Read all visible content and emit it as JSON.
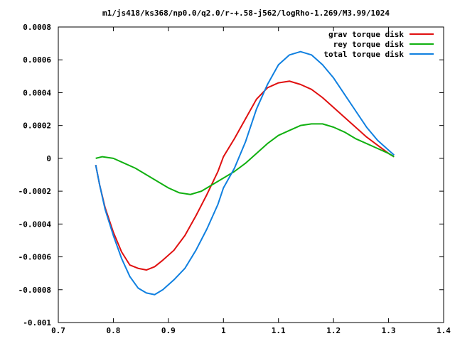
{
  "chart_data": {
    "type": "line",
    "title": "m1/js418/ks368/np0.0/q2.0/r-+.58-j562/logRho-1.269/M3.99/1024",
    "xlabel": "",
    "ylabel": "",
    "xlim": [
      0.7,
      1.4
    ],
    "ylim": [
      -0.001,
      0.0008
    ],
    "x_ticks": [
      "0.7",
      "0.8",
      "0.9",
      "1",
      "1.1",
      "1.2",
      "1.3",
      "1.4"
    ],
    "y_ticks": [
      "-0.001",
      "-0.0008",
      "-0.0006",
      "-0.0004",
      "-0.0002",
      "0",
      "0.0002",
      "0.0004",
      "0.0006",
      "0.0008"
    ],
    "grid": false,
    "legend_position": "top-right",
    "series": [
      {
        "name": "grav torque disk",
        "color": "#e01010",
        "points": [
          [
            0.768,
            -4e-05
          ],
          [
            0.775,
            -0.00016
          ],
          [
            0.785,
            -0.0003
          ],
          [
            0.8,
            -0.00045
          ],
          [
            0.815,
            -0.00057
          ],
          [
            0.83,
            -0.00065
          ],
          [
            0.845,
            -0.00067
          ],
          [
            0.86,
            -0.00068
          ],
          [
            0.875,
            -0.00066
          ],
          [
            0.89,
            -0.00062
          ],
          [
            0.91,
            -0.00056
          ],
          [
            0.93,
            -0.00047
          ],
          [
            0.95,
            -0.00035
          ],
          [
            0.97,
            -0.00022
          ],
          [
            0.99,
            -8e-05
          ],
          [
            1.0,
            1e-05
          ],
          [
            1.02,
            0.00012
          ],
          [
            1.04,
            0.00024
          ],
          [
            1.06,
            0.00036
          ],
          [
            1.08,
            0.00043
          ],
          [
            1.1,
            0.00046
          ],
          [
            1.12,
            0.00047
          ],
          [
            1.14,
            0.00045
          ],
          [
            1.16,
            0.00042
          ],
          [
            1.18,
            0.00037
          ],
          [
            1.2,
            0.00031
          ],
          [
            1.22,
            0.00025
          ],
          [
            1.24,
            0.00019
          ],
          [
            1.26,
            0.00013
          ],
          [
            1.28,
            8e-05
          ],
          [
            1.3,
            3e-05
          ],
          [
            1.31,
            1e-05
          ]
        ]
      },
      {
        "name": "rey torque disk",
        "color": "#10b010",
        "points": [
          [
            0.768,
            0.0
          ],
          [
            0.78,
            1e-05
          ],
          [
            0.8,
            0.0
          ],
          [
            0.82,
            -3e-05
          ],
          [
            0.84,
            -6e-05
          ],
          [
            0.86,
            -0.0001
          ],
          [
            0.88,
            -0.00014
          ],
          [
            0.9,
            -0.00018
          ],
          [
            0.92,
            -0.00021
          ],
          [
            0.94,
            -0.00022
          ],
          [
            0.96,
            -0.0002
          ],
          [
            0.98,
            -0.00016
          ],
          [
            1.0,
            -0.00012
          ],
          [
            1.02,
            -8e-05
          ],
          [
            1.04,
            -3e-05
          ],
          [
            1.06,
            3e-05
          ],
          [
            1.08,
            9e-05
          ],
          [
            1.1,
            0.00014
          ],
          [
            1.12,
            0.00017
          ],
          [
            1.14,
            0.0002
          ],
          [
            1.16,
            0.00021
          ],
          [
            1.18,
            0.00021
          ],
          [
            1.2,
            0.00019
          ],
          [
            1.22,
            0.00016
          ],
          [
            1.24,
            0.00012
          ],
          [
            1.26,
            9e-05
          ],
          [
            1.28,
            6e-05
          ],
          [
            1.3,
            3e-05
          ],
          [
            1.31,
            1e-05
          ]
        ]
      },
      {
        "name": "total torque disk",
        "color": "#1080e0",
        "points": [
          [
            0.768,
            -4e-05
          ],
          [
            0.775,
            -0.00016
          ],
          [
            0.785,
            -0.00031
          ],
          [
            0.8,
            -0.00047
          ],
          [
            0.815,
            -0.00061
          ],
          [
            0.83,
            -0.00072
          ],
          [
            0.845,
            -0.00079
          ],
          [
            0.86,
            -0.00082
          ],
          [
            0.875,
            -0.00083
          ],
          [
            0.89,
            -0.0008
          ],
          [
            0.91,
            -0.00074
          ],
          [
            0.93,
            -0.00067
          ],
          [
            0.95,
            -0.00056
          ],
          [
            0.97,
            -0.00043
          ],
          [
            0.99,
            -0.00028
          ],
          [
            1.0,
            -0.00018
          ],
          [
            1.02,
            -6e-05
          ],
          [
            1.04,
            0.0001
          ],
          [
            1.06,
            0.0003
          ],
          [
            1.08,
            0.00045
          ],
          [
            1.1,
            0.00057
          ],
          [
            1.12,
            0.00063
          ],
          [
            1.14,
            0.00065
          ],
          [
            1.16,
            0.00063
          ],
          [
            1.18,
            0.00057
          ],
          [
            1.2,
            0.00049
          ],
          [
            1.22,
            0.00039
          ],
          [
            1.24,
            0.00029
          ],
          [
            1.26,
            0.00019
          ],
          [
            1.28,
            0.00011
          ],
          [
            1.3,
            5e-05
          ],
          [
            1.31,
            2e-05
          ]
        ]
      }
    ]
  }
}
